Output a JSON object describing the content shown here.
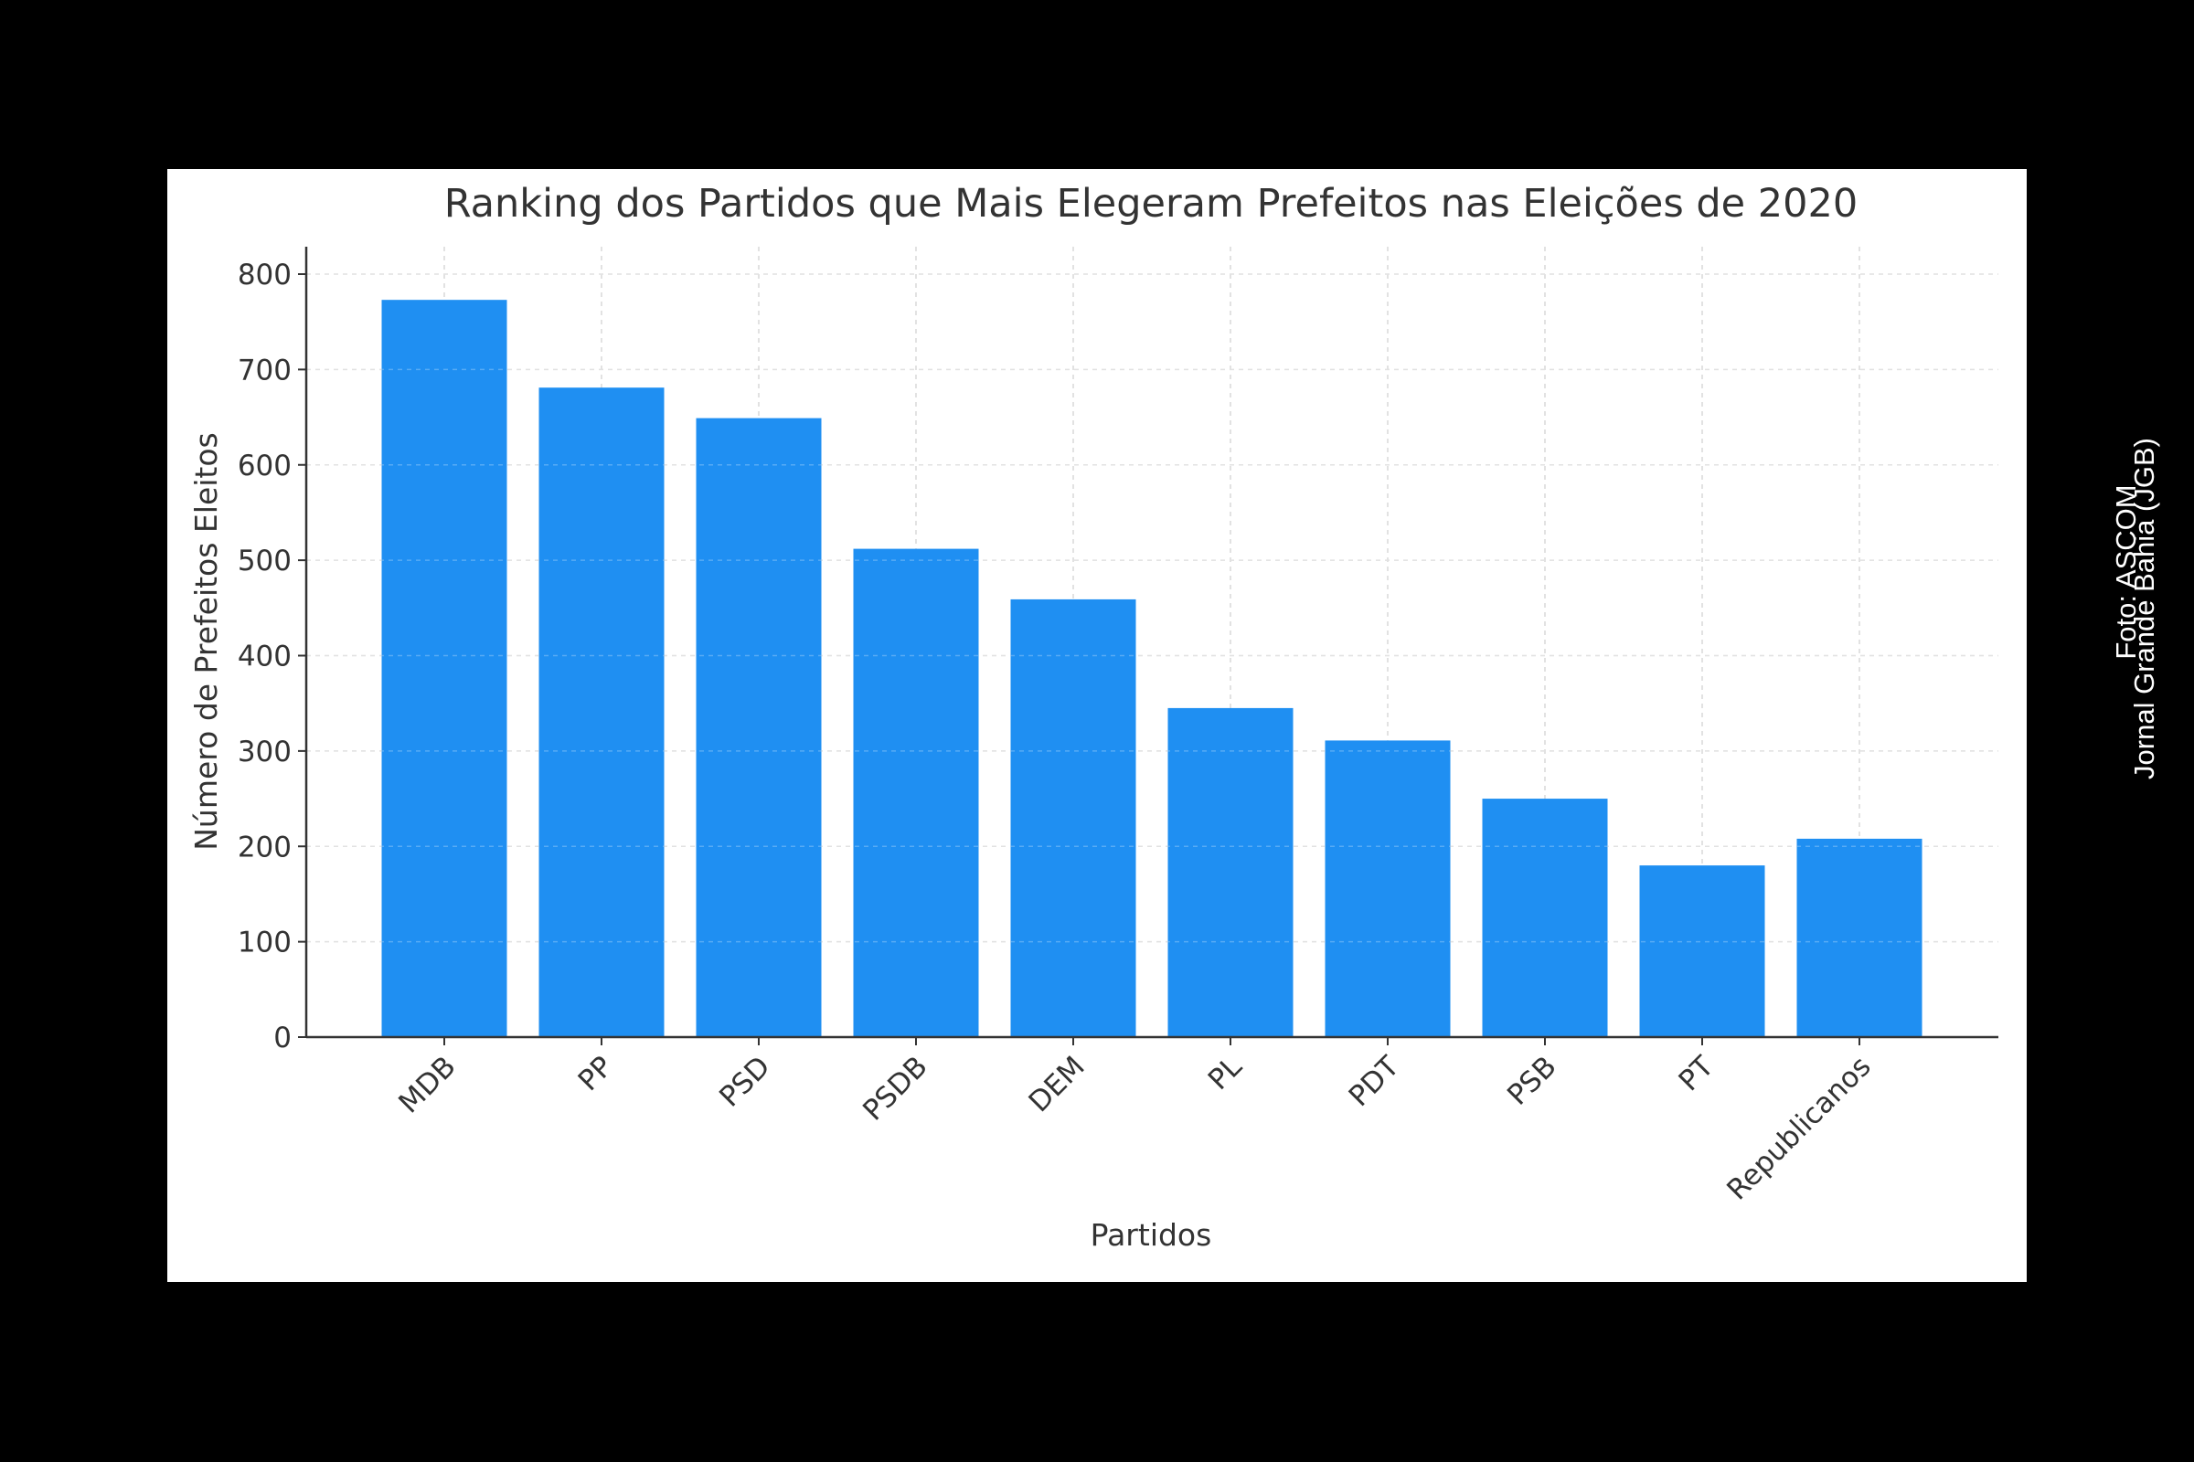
{
  "chart_data": {
    "type": "bar",
    "title": "Ranking dos Partidos que Mais Elegeram Prefeitos nas Eleições de 2020",
    "xlabel": "Partidos",
    "ylabel": "Número de Prefeitos Eleitos",
    "categories": [
      "MDB",
      "PP",
      "PSD",
      "PSDB",
      "DEM",
      "PL",
      "PDT",
      "PSB",
      "PT",
      "Republicanos"
    ],
    "values": [
      773,
      681,
      649,
      512,
      459,
      345,
      311,
      250,
      180,
      208
    ],
    "ylim": [
      0,
      800
    ],
    "yticks": [
      0,
      100,
      200,
      300,
      400,
      500,
      600,
      700,
      800
    ],
    "grid": true,
    "bar_color": "#1f8ff2"
  },
  "credit": {
    "line1": "Foto: ASCOM",
    "line2": "Jornal Grande Bahia (JGB)"
  }
}
